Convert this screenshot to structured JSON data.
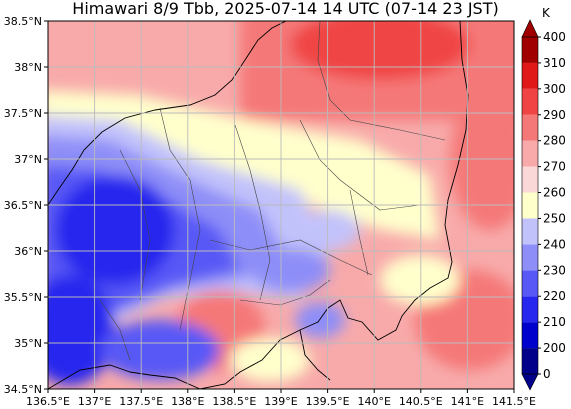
{
  "title": "Himawari 8/9 Tbb, 2025-07-14 14 UTC (07-14 23 JST)",
  "map": {
    "lon_range": [
      136.5,
      141.5
    ],
    "lat_range": [
      34.5,
      38.5
    ],
    "grid": true,
    "lon_ticks": [
      {
        "v": 136.5,
        "label": "136.5°E"
      },
      {
        "v": 137.0,
        "label": "137°E"
      },
      {
        "v": 137.5,
        "label": "137.5°E"
      },
      {
        "v": 138.0,
        "label": "138°E"
      },
      {
        "v": 138.5,
        "label": "138.5°E"
      },
      {
        "v": 139.0,
        "label": "139°E"
      },
      {
        "v": 139.5,
        "label": "139.5°E"
      },
      {
        "v": 140.0,
        "label": "140°E"
      },
      {
        "v": 140.5,
        "label": "140.5°E"
      },
      {
        "v": 141.0,
        "label": "141°E"
      },
      {
        "v": 141.5,
        "label": "141.5°E"
      }
    ],
    "lat_ticks": [
      {
        "v": 34.5,
        "label": "34.5°N"
      },
      {
        "v": 35.0,
        "label": "35°N"
      },
      {
        "v": 35.5,
        "label": "35.5°N"
      },
      {
        "v": 36.0,
        "label": "36°N"
      },
      {
        "v": 36.5,
        "label": "36.5°N"
      },
      {
        "v": 37.0,
        "label": "37°N"
      },
      {
        "v": 37.5,
        "label": "37.5°N"
      },
      {
        "v": 38.0,
        "label": "38°N"
      },
      {
        "v": 38.5,
        "label": "38.5°N"
      }
    ]
  },
  "colorbar": {
    "unit": "K",
    "levels": [
      "0",
      "200",
      "210",
      "220",
      "230",
      "240",
      "250",
      "260",
      "270",
      "280",
      "290",
      "300",
      "310",
      "400"
    ],
    "colors": [
      "#00008b",
      "#0000cd",
      "#2626ee",
      "#5858f6",
      "#8e8ef8",
      "#c2c2fb",
      "#ffffcc",
      "#fbd8d8",
      "#f8aaaa",
      "#f57878",
      "#f04444",
      "#e01818",
      "#a00000"
    ]
  }
}
